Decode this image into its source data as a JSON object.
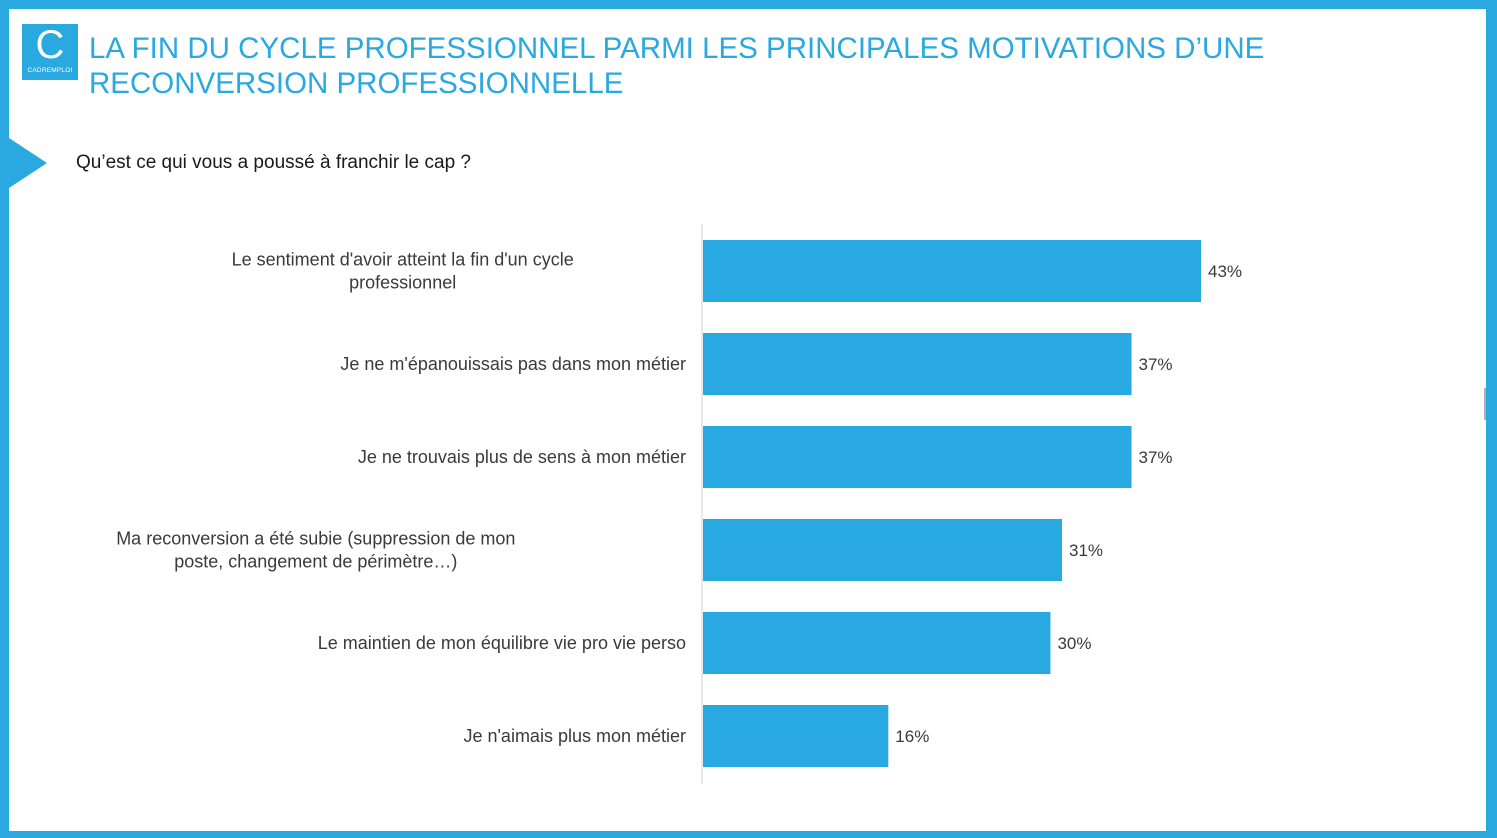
{
  "logo": {
    "letter": "C",
    "brand": "CADREMPLOI",
    "color": "#2aa8e0"
  },
  "title": "LA FIN DU CYCLE PROFESSIONNEL PARMI LES PRINCIPALES MOTIVATIONS D’UNE RECONVERSION PROFESSIONNELLE",
  "question": "Qu’est ce qui vous a poussé à franchir le cap ?",
  "colors": {
    "accent": "#2aa8e0",
    "bar": "#29a9e1",
    "text": "#3a3a3a",
    "axis": "#d0d0d0"
  },
  "chart_data": {
    "type": "bar",
    "orientation": "horizontal",
    "categories": [
      [
        "Le sentiment d'avoir atteint la fin d'un cycle",
        "professionnel"
      ],
      [
        "Je ne m'épanouissais pas dans mon métier"
      ],
      [
        "Je ne trouvais plus de sens à mon métier"
      ],
      [
        "Ma reconversion a été subie (suppression de mon",
        "poste, changement de périmètre…)"
      ],
      [
        "Le maintien de mon équilibre vie pro vie perso"
      ],
      [
        "Je n'aimais plus mon métier"
      ]
    ],
    "values": [
      43,
      37,
      37,
      31,
      30,
      16
    ],
    "value_labels": [
      "43%",
      "37%",
      "37%",
      "31%",
      "30%",
      "16%"
    ],
    "unit": "%",
    "xlim": [
      0,
      43
    ],
    "grid": false,
    "legend": "none"
  }
}
